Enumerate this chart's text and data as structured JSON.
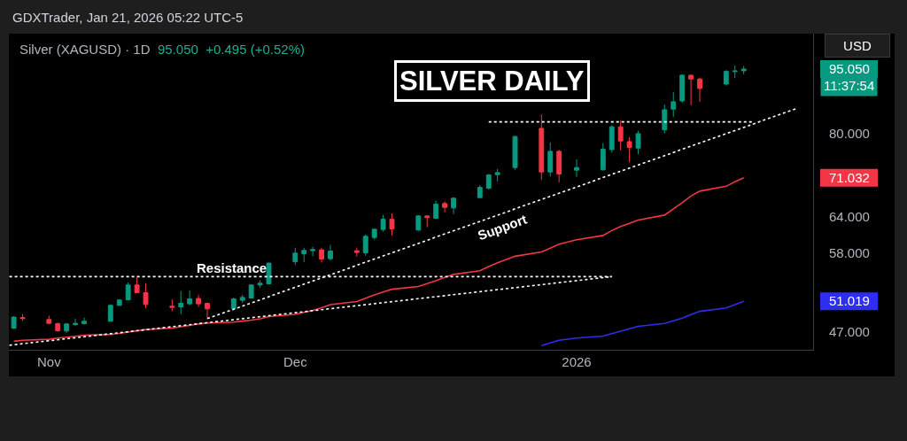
{
  "chart_data": {
    "type": "candlestick",
    "title": "SILVER DAILY",
    "subtitle": "Silver (XAGUSD) · 1D",
    "annotations": [
      "GDXTrader, Jan 21, 2026 05:22 UTC-5",
      "95.050  +0.495 (+0.52%)",
      "USD",
      "11:37:54",
      "Resistance",
      "Support"
    ],
    "x": [
      "2025-10-30",
      "2025-10-31",
      "2025-11-03",
      "2025-11-04",
      "2025-11-05",
      "2025-11-06",
      "2025-11-07",
      "2025-11-10",
      "2025-11-11",
      "2025-11-12",
      "2025-11-13",
      "2025-11-14",
      "2025-11-17",
      "2025-11-18",
      "2025-11-19",
      "2025-11-20",
      "2025-11-21",
      "2025-11-24",
      "2025-11-25",
      "2025-11-26",
      "2025-11-27",
      "2025-11-28",
      "2025-12-01",
      "2025-12-02",
      "2025-12-03",
      "2025-12-04",
      "2025-12-05",
      "2025-12-08",
      "2025-12-09",
      "2025-12-10",
      "2025-12-11",
      "2025-12-12",
      "2025-12-15",
      "2025-12-16",
      "2025-12-17",
      "2025-12-18",
      "2025-12-19",
      "2025-12-22",
      "2025-12-23",
      "2025-12-24",
      "2025-12-26",
      "2025-12-29",
      "2025-12-30",
      "2025-12-31",
      "2026-01-02",
      "2026-01-05",
      "2026-01-06",
      "2026-01-07",
      "2026-01-08",
      "2026-01-09",
      "2026-01-12",
      "2026-01-13",
      "2026-01-14",
      "2026-01-15",
      "2026-01-16",
      "2026-01-19",
      "2026-01-20",
      "2026-01-21"
    ],
    "ohlc": [
      [
        47.48,
        49.01,
        47.37,
        48.9
      ],
      [
        48.85,
        49.25,
        48.39,
        48.7
      ],
      [
        48.59,
        49.08,
        48.01,
        48.09
      ],
      [
        48.05,
        48.21,
        47.0,
        47.14
      ],
      [
        47.11,
        48.13,
        46.89,
        48.01
      ],
      [
        47.93,
        48.7,
        47.75,
        48.09
      ],
      [
        48.05,
        48.85,
        47.93,
        48.36
      ],
      [
        48.36,
        50.59,
        48.32,
        50.47
      ],
      [
        50.47,
        51.27,
        50.38,
        51.19
      ],
      [
        51.23,
        53.67,
        51.15,
        53.29
      ],
      [
        53.29,
        54.41,
        52.17,
        52.21
      ],
      [
        52.21,
        53.55,
        50.07,
        50.59
      ],
      [
        50.35,
        51.27,
        49.67,
        50.19
      ],
      [
        50.26,
        52.45,
        49.28,
        50.74
      ],
      [
        50.67,
        52.5,
        50.47,
        51.35
      ],
      [
        51.4,
        51.89,
        50.26,
        50.67
      ],
      [
        50.74,
        50.86,
        48.7,
        49.99
      ],
      [
        50.02,
        51.55,
        49.79,
        51.35
      ],
      [
        51.15,
        51.89,
        50.79,
        51.55
      ],
      [
        51.47,
        53.42,
        51.4,
        53.29
      ],
      [
        53.29,
        53.97,
        52.92,
        53.55
      ],
      [
        53.46,
        56.59,
        53.38,
        56.51
      ],
      [
        56.72,
        58.88,
        56.24,
        58.04
      ],
      [
        57.95,
        58.88,
        56.68,
        58.46
      ],
      [
        58.42,
        59.02,
        57.59,
        58.6
      ],
      [
        58.56,
        58.88,
        56.59,
        57.13
      ],
      [
        57.18,
        59.34,
        56.95,
        58.36
      ],
      [
        58.42,
        58.88,
        57.5,
        58.14
      ],
      [
        58.09,
        61.01,
        57.63,
        60.72
      ],
      [
        60.53,
        61.98,
        60.19,
        61.88
      ],
      [
        61.84,
        64.32,
        61.49,
        63.56
      ],
      [
        63.56,
        64.58,
        60.86,
        61.93
      ],
      [
        61.74,
        64.27,
        61.59,
        64.12
      ],
      [
        64.12,
        64.2,
        62.22,
        63.82
      ],
      [
        63.71,
        66.81,
        63.62,
        66.18
      ],
      [
        66.29,
        66.65,
        64.73,
        65.61
      ],
      [
        65.51,
        67.44,
        64.47,
        67.24
      ],
      [
        67.35,
        69.62,
        67.24,
        69.23
      ],
      [
        69.06,
        71.73,
        68.85,
        71.56
      ],
      [
        71.63,
        72.71,
        70.34,
        72.02
      ],
      [
        73.0,
        79.51,
        72.59,
        79.32
      ],
      [
        81.09,
        84.16,
        70.62,
        72.14
      ],
      [
        72.14,
        78.07,
        71.29,
        76.24
      ],
      [
        76.24,
        76.55,
        70.17,
        71.73
      ],
      [
        72.48,
        74.63,
        71.17,
        73.0
      ],
      [
        72.54,
        77.94,
        72.42,
        76.66
      ],
      [
        76.6,
        81.73,
        76.01,
        81.42
      ],
      [
        81.42,
        82.84,
        76.42,
        78.38
      ],
      [
        78.26,
        79.19,
        74.05,
        77.02
      ],
      [
        76.91,
        80.57,
        75.65,
        79.94
      ],
      [
        80.76,
        86.39,
        80.0,
        85.23
      ],
      [
        85.37,
        89.3,
        83.57,
        87.07
      ],
      [
        87.27,
        93.71,
        86.86,
        93.49
      ],
      [
        93.49,
        93.6,
        86.25,
        92.54
      ],
      [
        92.54,
        92.89,
        87.07,
        90.22
      ],
      [
        91.3,
        94.76,
        90.93,
        94.45
      ],
      [
        94.4,
        95.96,
        92.76,
        94.555
      ],
      [
        94.6,
        95.8,
        93.71,
        95.05
      ]
    ],
    "colors": [
      "#089981",
      "#f23645",
      "#f23645",
      "#f23645",
      "#089981",
      "#089981",
      "#089981",
      "#089981",
      "#089981",
      "#089981",
      "#f23645",
      "#f23645",
      "#f23645",
      "#089981",
      "#089981",
      "#f23645",
      "#f23645",
      "#089981",
      "#089981",
      "#089981",
      "#089981",
      "#089981",
      "#089981",
      "#089981",
      "#089981",
      "#f23645",
      "#089981",
      "#f23645",
      "#089981",
      "#089981",
      "#089981",
      "#f23645",
      "#089981",
      "#f23645",
      "#089981",
      "#f23645",
      "#089981",
      "#089981",
      "#089981",
      "#089981",
      "#089981",
      "#f23645",
      "#089981",
      "#f23645",
      "#089981",
      "#089981",
      "#089981",
      "#f23645",
      "#f23645",
      "#089981",
      "#089981",
      "#089981",
      "#089981",
      "#f23645",
      "#f23645",
      "#089981",
      "#089981",
      "#089981"
    ],
    "series": [
      {
        "type": "line",
        "color": "#f23645",
        "values": [
          45.84,
          45.95,
          46.08,
          46.23,
          46.34,
          46.45,
          46.57,
          46.68,
          46.81,
          46.97,
          47.13,
          47.3,
          47.49,
          47.66,
          47.83,
          48.01,
          48.13,
          48.24,
          48.38,
          48.51,
          48.67,
          48.97,
          49.26,
          49.53,
          49.78,
          50.15,
          50.57,
          50.99,
          51.44,
          51.89,
          52.29,
          52.69,
          53.08,
          53.48,
          53.92,
          54.38,
          54.83,
          55.37,
          55.98,
          56.57,
          57.56,
          58.22,
          58.83,
          59.44,
          60.15,
          60.86,
          61.66,
          62.33,
          62.87,
          63.41,
          64.27,
          65.35,
          66.44,
          67.64,
          68.53,
          69.43,
          70.26,
          71.032
        ]
      },
      {
        "type": "line",
        "color": "#2e2ef0",
        "values": [
          null,
          null,
          null,
          null,
          null,
          null,
          null,
          null,
          null,
          null,
          null,
          null,
          null,
          null,
          null,
          null,
          null,
          null,
          null,
          null,
          null,
          null,
          null,
          null,
          null,
          null,
          null,
          null,
          null,
          null,
          null,
          null,
          null,
          null,
          null,
          null,
          null,
          null,
          null,
          null,
          null,
          45.3,
          45.63,
          45.95,
          46.23,
          46.47,
          46.78,
          47.08,
          47.39,
          47.7,
          48.07,
          48.41,
          48.76,
          49.22,
          49.66,
          50.11,
          50.55,
          51.019
        ]
      },
      {
        "type": "line",
        "color": "#ffffff",
        "line_style": "dotted",
        "x": [
          "2025-10-29T12:00",
          "2026-01-06"
        ],
        "values": [
          54.5,
          54.5
        ]
      },
      {
        "type": "line",
        "color": "#ffffff",
        "line_style": "dotted",
        "x": [
          "2025-10-29T12:00",
          "2026-01-06"
        ],
        "values": [
          45.35,
          54.5
        ]
      },
      {
        "type": "line",
        "color": "#ffffff",
        "line_style": "dotted",
        "x": [
          "2025-11-21",
          "2026-01-27"
        ],
        "values": [
          48.7,
          85.5
        ]
      },
      {
        "type": "line",
        "color": "#ffffff",
        "line_style": "dotted",
        "x": [
          "2025-12-23",
          "2026-01-22"
        ],
        "values": [
          82.5,
          82.5
        ]
      }
    ],
    "xlim": [
      "2025-10-29T10:30",
      "2026-01-28T21:20"
    ],
    "xticks": [
      {
        "value": "2025-11-03",
        "label": "Nov"
      },
      {
        "value": "2025-12-01",
        "label": "Dec"
      },
      {
        "value": "2026-01-02",
        "label": "2026"
      }
    ],
    "ylim": [
      44.8,
      104.5
    ],
    "yticks": [
      {
        "value": 47,
        "label": "47.000"
      },
      {
        "value": 51.019,
        "label": "51.019"
      },
      {
        "value": 58,
        "label": "58.000"
      },
      {
        "value": 64,
        "label": "64.000"
      },
      {
        "value": 71.032,
        "label": "71.032"
      },
      {
        "value": 80,
        "label": "80.000"
      },
      {
        "value": 95.05,
        "label": "95.050"
      }
    ],
    "log": "y"
  }
}
